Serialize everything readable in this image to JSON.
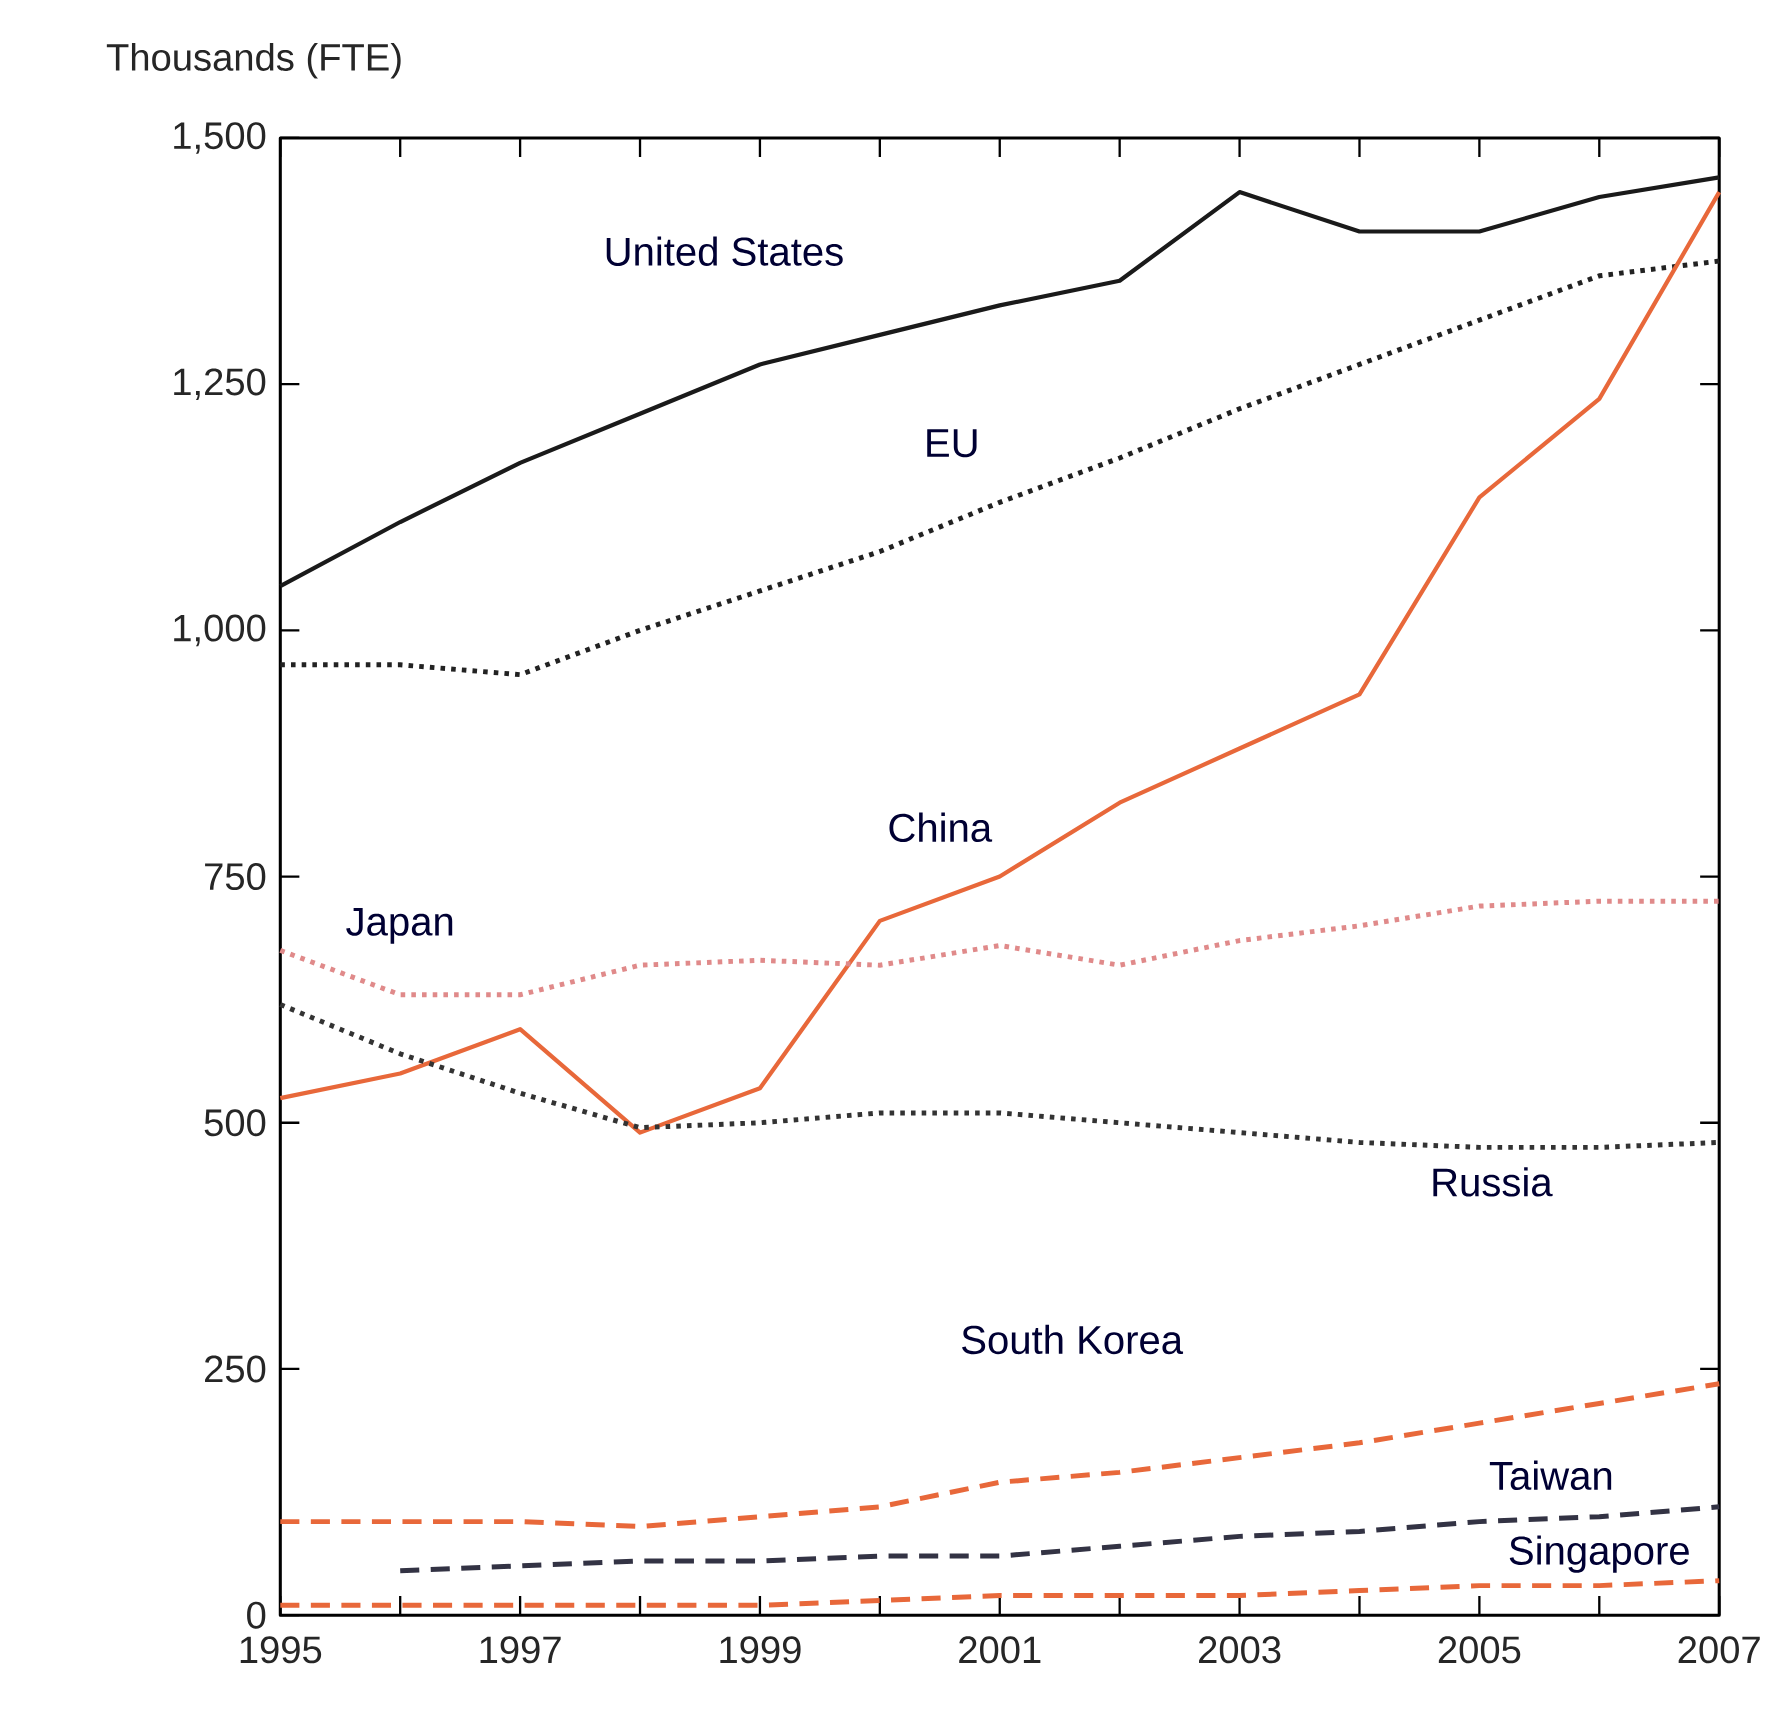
{
  "chart_data": {
    "type": "line",
    "ylabel": "Thousands (FTE)",
    "x": [
      1995,
      1996,
      1997,
      1998,
      1999,
      2000,
      2001,
      2002,
      2003,
      2004,
      2005,
      2006,
      2007
    ],
    "xlim": [
      1995,
      2007
    ],
    "ylim": [
      0,
      1500
    ],
    "xticks": [
      1995,
      {
        "value": 1996,
        "label": null
      },
      1997,
      {
        "value": 1998,
        "label": null
      },
      1999,
      {
        "value": 2000,
        "label": null
      },
      2001,
      {
        "value": 2002,
        "label": null
      },
      2003,
      {
        "value": 2004,
        "label": null
      },
      2005,
      {
        "value": 2006,
        "label": null
      },
      2007
    ],
    "yticks": [
      0,
      250,
      500,
      750,
      {
        "value": 1000,
        "label": "1,000"
      },
      {
        "value": 1250,
        "label": "1,250"
      },
      {
        "value": 1500,
        "label": "1,500"
      }
    ],
    "grid": false,
    "legend": false,
    "marker": "none",
    "series": [
      {
        "name": "United States",
        "color": "#1a1a1a",
        "line_style": "solid",
        "values": [
          1045,
          1110,
          1170,
          1220,
          1270,
          1300,
          1330,
          1355,
          1445,
          1405,
          1405,
          1440,
          1460
        ]
      },
      {
        "name": "EU",
        "color": "#222222",
        "line_style": "dotted",
        "values": [
          965,
          965,
          955,
          1000,
          1040,
          1080,
          1130,
          1175,
          1225,
          1270,
          1315,
          1360,
          1375
        ]
      },
      {
        "name": "China",
        "color": "#e8683a",
        "line_style": "solid",
        "values": [
          525,
          550,
          595,
          490,
          535,
          705,
          750,
          825,
          880,
          935,
          1135,
          1235,
          1445
        ]
      },
      {
        "name": "Japan",
        "color": "#e08a8a",
        "line_style": "dotted",
        "values": [
          675,
          630,
          630,
          660,
          665,
          660,
          680,
          660,
          685,
          700,
          720,
          725,
          725
        ]
      },
      {
        "name": "Russia",
        "color": "#333333",
        "line_style": "dotted",
        "values": [
          620,
          570,
          530,
          495,
          500,
          510,
          510,
          500,
          490,
          480,
          475,
          475,
          480
        ]
      },
      {
        "name": "South Korea",
        "color": "#e8683a",
        "line_style": "dashed",
        "values": [
          95,
          95,
          95,
          90,
          100,
          110,
          135,
          145,
          160,
          175,
          195,
          215,
          235
        ]
      },
      {
        "name": "Taiwan",
        "color": "#333344",
        "line_style": "dashed",
        "values": [
          null,
          45,
          50,
          55,
          55,
          60,
          60,
          70,
          80,
          85,
          95,
          100,
          110
        ]
      },
      {
        "name": "Singapore",
        "color": "#e8683a",
        "line_style": "dashed",
        "values": [
          10,
          10,
          10,
          10,
          10,
          15,
          20,
          20,
          20,
          25,
          30,
          30,
          35
        ]
      }
    ]
  }
}
